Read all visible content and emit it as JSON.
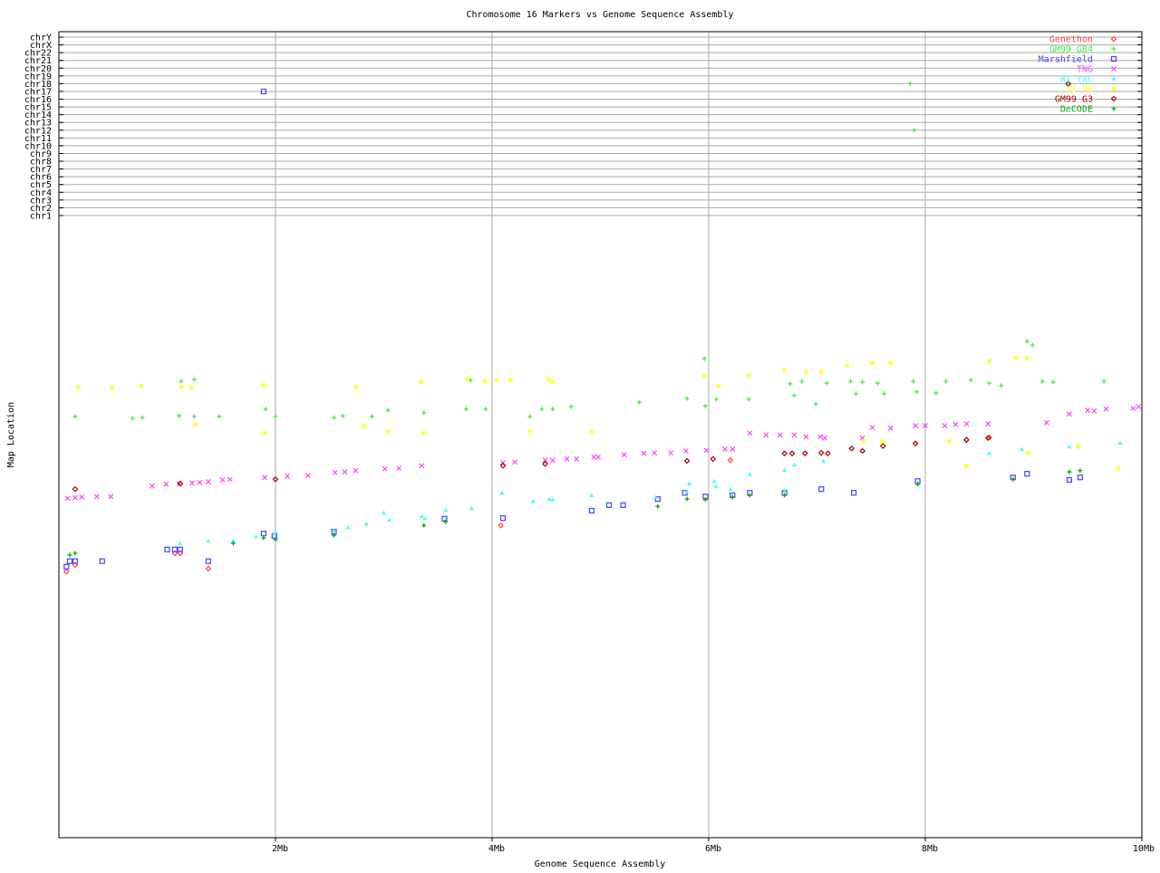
{
  "chart_data": {
    "type": "scatter",
    "title": "Chromosome 16 Markers vs Genome Sequence Assembly",
    "xlabel": "Genome Sequence Assembly",
    "ylabel": "Map Location",
    "xlim": [
      0,
      10
    ],
    "x_unit": "Mb",
    "x_ticks": [
      {
        "value": 2,
        "label": "2Mb"
      },
      {
        "value": 4,
        "label": "4Mb"
      },
      {
        "value": 6,
        "label": "6Mb"
      },
      {
        "value": 8,
        "label": "8Mb"
      },
      {
        "value": 10,
        "label": "10Mb"
      }
    ],
    "ylim": [
      0,
      100
    ],
    "chromosome_rows": [
      "chrY",
      "chrX",
      "chr22",
      "chr21",
      "chr20",
      "chr19",
      "chr18",
      "chr17",
      "chr16",
      "chr15",
      "chr14",
      "chr13",
      "chr12",
      "chr11",
      "chr10",
      "chr9",
      "chr8",
      "chr7",
      "chr6",
      "chr5",
      "chr4",
      "chr3",
      "chr2",
      "chr1"
    ],
    "grid": true,
    "legend_position": "top-right",
    "series": [
      {
        "name": "Genethon",
        "color": "#ff4444",
        "marker": "diamond",
        "points": [
          [
            0.07,
            43.2
          ],
          [
            0.15,
            44.3
          ],
          [
            1.07,
            46.2
          ],
          [
            1.12,
            46.2
          ],
          [
            1.38,
            43.7
          ],
          [
            4.08,
            50.7
          ],
          [
            6.2,
            61.3
          ],
          [
            8.38,
            64.6
          ],
          [
            8.59,
            65.0
          ]
        ],
        "other_chr": []
      },
      {
        "name": "GM99 GB4",
        "color": "#44ee44",
        "marker": "plus",
        "points": [
          [
            0.15,
            68.4
          ],
          [
            1.13,
            74.1
          ],
          [
            1.25,
            74.4
          ],
          [
            0.68,
            68.1
          ],
          [
            0.77,
            68.2
          ],
          [
            1.11,
            68.5
          ],
          [
            1.25,
            68.4
          ],
          [
            1.48,
            68.4
          ],
          [
            2.0,
            68.4
          ],
          [
            2.54,
            68.2
          ],
          [
            2.62,
            68.5
          ],
          [
            2.89,
            68.4
          ],
          [
            3.04,
            69.4
          ],
          [
            3.37,
            69.0
          ],
          [
            3.76,
            69.6
          ],
          [
            3.94,
            69.6
          ],
          [
            4.35,
            68.4
          ],
          [
            4.46,
            69.6
          ],
          [
            4.56,
            69.6
          ],
          [
            4.73,
            70.0
          ],
          [
            5.36,
            70.7
          ],
          [
            5.8,
            71.3
          ],
          [
            5.97,
            70.1
          ],
          [
            6.07,
            71.2
          ],
          [
            6.37,
            71.2
          ],
          [
            6.75,
            73.7
          ],
          [
            6.86,
            74.1
          ],
          [
            7.09,
            73.8
          ],
          [
            7.31,
            74.1
          ],
          [
            7.42,
            74.0
          ],
          [
            7.56,
            73.8
          ],
          [
            7.89,
            74.1
          ],
          [
            8.1,
            72.2
          ],
          [
            8.19,
            74.1
          ],
          [
            8.42,
            74.3
          ],
          [
            8.59,
            73.8
          ],
          [
            8.7,
            73.4
          ],
          [
            8.94,
            80.6
          ],
          [
            9.08,
            74.1
          ],
          [
            9.18,
            74.0
          ],
          [
            9.65,
            74.1
          ],
          [
            6.79,
            71.8
          ],
          [
            6.99,
            70.4
          ],
          [
            7.36,
            72.1
          ],
          [
            7.62,
            72.1
          ],
          [
            7.92,
            72.4
          ],
          [
            5.96,
            77.8
          ],
          [
            8.99,
            80.0
          ],
          [
            3.8,
            74.3
          ],
          [
            1.91,
            69.6
          ]
        ],
        "other_chr": [
          {
            "x": 7.86,
            "chr": "chr18"
          },
          {
            "x": 7.9,
            "chr": "chr12"
          }
        ]
      },
      {
        "name": "Marshfield",
        "color": "#4444ff",
        "marker": "square",
        "points": [
          [
            0.07,
            44.0
          ],
          [
            0.1,
            44.9
          ],
          [
            0.15,
            44.9
          ],
          [
            0.4,
            44.9
          ],
          [
            1.0,
            46.8
          ],
          [
            1.07,
            46.8
          ],
          [
            1.12,
            46.8
          ],
          [
            1.38,
            44.9
          ],
          [
            1.89,
            49.4
          ],
          [
            1.99,
            49.0
          ],
          [
            2.54,
            49.7
          ],
          [
            3.56,
            51.8
          ],
          [
            4.1,
            51.9
          ],
          [
            4.92,
            53.1
          ],
          [
            5.08,
            54.0
          ],
          [
            5.21,
            54.0
          ],
          [
            5.53,
            55.0
          ],
          [
            5.78,
            56.0
          ],
          [
            5.97,
            55.4
          ],
          [
            6.22,
            55.6
          ],
          [
            6.38,
            56.0
          ],
          [
            6.7,
            56.0
          ],
          [
            7.04,
            56.6
          ],
          [
            7.34,
            56.0
          ],
          [
            7.93,
            57.9
          ],
          [
            8.81,
            58.5
          ],
          [
            8.94,
            59.1
          ],
          [
            9.33,
            58.1
          ],
          [
            9.43,
            58.5
          ]
        ],
        "other_chr": [
          {
            "x": 1.89,
            "chr": "chr17"
          }
        ]
      },
      {
        "name": "TNG",
        "color": "#ff44ff",
        "marker": "x",
        "points": [
          [
            0.08,
            55.1
          ],
          [
            0.15,
            55.2
          ],
          [
            0.21,
            55.3
          ],
          [
            0.35,
            55.4
          ],
          [
            0.48,
            55.4
          ],
          [
            0.86,
            57.1
          ],
          [
            0.99,
            57.4
          ],
          [
            1.11,
            57.5
          ],
          [
            1.23,
            57.6
          ],
          [
            1.3,
            57.7
          ],
          [
            1.38,
            57.8
          ],
          [
            1.51,
            58.1
          ],
          [
            1.58,
            58.2
          ],
          [
            1.9,
            58.5
          ],
          [
            2.11,
            58.7
          ],
          [
            2.3,
            58.8
          ],
          [
            2.55,
            59.3
          ],
          [
            2.64,
            59.4
          ],
          [
            2.74,
            59.6
          ],
          [
            3.01,
            59.9
          ],
          [
            3.14,
            60.0
          ],
          [
            3.35,
            60.4
          ],
          [
            4.1,
            60.9
          ],
          [
            4.21,
            61.0
          ],
          [
            4.49,
            61.3
          ],
          [
            4.56,
            61.3
          ],
          [
            4.69,
            61.5
          ],
          [
            4.78,
            61.5
          ],
          [
            4.94,
            61.8
          ],
          [
            4.98,
            61.8
          ],
          [
            5.22,
            62.2
          ],
          [
            5.4,
            62.4
          ],
          [
            5.5,
            62.5
          ],
          [
            5.65,
            62.5
          ],
          [
            5.79,
            62.8
          ],
          [
            5.98,
            62.9
          ],
          [
            6.15,
            63.1
          ],
          [
            6.22,
            63.1
          ],
          [
            6.38,
            65.7
          ],
          [
            6.53,
            65.4
          ],
          [
            6.66,
            65.4
          ],
          [
            6.79,
            65.4
          ],
          [
            6.9,
            65.1
          ],
          [
            7.03,
            65.1
          ],
          [
            7.07,
            64.9
          ],
          [
            7.42,
            64.9
          ],
          [
            7.51,
            66.6
          ],
          [
            7.68,
            66.5
          ],
          [
            7.91,
            66.9
          ],
          [
            8.0,
            66.9
          ],
          [
            8.18,
            66.9
          ],
          [
            8.28,
            67.1
          ],
          [
            8.38,
            67.2
          ],
          [
            8.58,
            67.2
          ],
          [
            9.12,
            67.4
          ],
          [
            9.33,
            68.8
          ],
          [
            9.5,
            69.4
          ],
          [
            9.56,
            69.3
          ],
          [
            9.67,
            69.6
          ],
          [
            9.92,
            69.7
          ],
          [
            9.97,
            70.0
          ]
        ],
        "other_chr": []
      },
      {
        "name": "WI YAC",
        "color": "#44ffff",
        "marker": "triangle",
        "points": [
          [
            1.12,
            47.8
          ],
          [
            1.38,
            48.2
          ],
          [
            1.61,
            48.2
          ],
          [
            1.82,
            48.9
          ],
          [
            1.99,
            49.4
          ],
          [
            2.54,
            49.9
          ],
          [
            2.67,
            50.4
          ],
          [
            2.84,
            51.0
          ],
          [
            3.0,
            52.8
          ],
          [
            3.05,
            51.6
          ],
          [
            3.35,
            52.2
          ],
          [
            3.38,
            51.9
          ],
          [
            3.57,
            53.2
          ],
          [
            3.81,
            53.5
          ],
          [
            4.09,
            56.0
          ],
          [
            4.38,
            54.6
          ],
          [
            4.53,
            55.0
          ],
          [
            4.56,
            54.9
          ],
          [
            4.92,
            55.6
          ],
          [
            5.51,
            55.3
          ],
          [
            5.8,
            56.2
          ],
          [
            5.82,
            57.5
          ],
          [
            6.05,
            57.9
          ],
          [
            6.07,
            57.1
          ],
          [
            6.2,
            56.6
          ],
          [
            6.38,
            59.0
          ],
          [
            6.7,
            59.7
          ],
          [
            6.79,
            60.6
          ],
          [
            7.06,
            61.2
          ],
          [
            6.7,
            56.3
          ],
          [
            7.93,
            57.6
          ],
          [
            8.59,
            62.4
          ],
          [
            8.89,
            63.1
          ],
          [
            9.33,
            63.5
          ],
          [
            9.8,
            64.1
          ]
        ],
        "other_chr": []
      },
      {
        "name": "WI RH",
        "color": "#ffff44",
        "marker": "asterisk",
        "points": [
          [
            0.18,
            73.1
          ],
          [
            0.49,
            73.1
          ],
          [
            0.76,
            73.4
          ],
          [
            1.13,
            73.2
          ],
          [
            1.22,
            73.1
          ],
          [
            1.26,
            67.1
          ],
          [
            1.89,
            73.5
          ],
          [
            1.9,
            65.7
          ],
          [
            2.74,
            73.1
          ],
          [
            2.82,
            66.8
          ],
          [
            3.04,
            66.0
          ],
          [
            3.34,
            74.0
          ],
          [
            3.37,
            65.7
          ],
          [
            3.77,
            74.4
          ],
          [
            3.93,
            74.1
          ],
          [
            4.04,
            74.3
          ],
          [
            4.17,
            74.3
          ],
          [
            4.35,
            66.0
          ],
          [
            4.52,
            74.4
          ],
          [
            4.56,
            74.0
          ],
          [
            4.92,
            65.9
          ],
          [
            5.96,
            74.9
          ],
          [
            6.09,
            73.4
          ],
          [
            6.37,
            75.1
          ],
          [
            6.7,
            76.0
          ],
          [
            6.9,
            75.6
          ],
          [
            7.04,
            75.6
          ],
          [
            7.28,
            76.6
          ],
          [
            7.51,
            77.1
          ],
          [
            7.68,
            77.1
          ],
          [
            7.43,
            64.4
          ],
          [
            7.6,
            64.3
          ],
          [
            8.22,
            64.4
          ],
          [
            8.38,
            60.4
          ],
          [
            8.59,
            77.4
          ],
          [
            8.83,
            77.9
          ],
          [
            8.94,
            77.9
          ],
          [
            8.95,
            62.5
          ],
          [
            9.41,
            63.5
          ],
          [
            9.78,
            60.0
          ]
        ],
        "other_chr": []
      },
      {
        "name": "GM99 G3",
        "color": "#aa0000",
        "marker": "diamond",
        "points": [
          [
            0.15,
            56.6
          ],
          [
            1.12,
            57.5
          ],
          [
            2.0,
            58.2
          ],
          [
            4.1,
            60.4
          ],
          [
            4.49,
            60.7
          ],
          [
            5.8,
            61.2
          ],
          [
            6.04,
            61.5
          ],
          [
            6.7,
            62.4
          ],
          [
            6.77,
            62.4
          ],
          [
            6.89,
            62.4
          ],
          [
            7.04,
            62.5
          ],
          [
            7.1,
            62.4
          ],
          [
            7.32,
            63.2
          ],
          [
            7.42,
            62.8
          ],
          [
            7.61,
            63.6
          ],
          [
            7.91,
            64.0
          ],
          [
            8.38,
            64.6
          ],
          [
            8.58,
            64.9
          ]
        ],
        "other_chr": [
          {
            "x": 9.32,
            "chr": "chr18"
          }
        ]
      },
      {
        "name": "DeCODE",
        "color": "#00aa00",
        "marker": "plus",
        "points": [
          [
            0.1,
            45.9
          ],
          [
            0.15,
            46.2
          ],
          [
            1.61,
            47.8
          ],
          [
            1.89,
            48.7
          ],
          [
            2.0,
            48.4
          ],
          [
            2.54,
            49.1
          ],
          [
            3.37,
            50.7
          ],
          [
            3.57,
            51.3
          ],
          [
            5.53,
            53.8
          ],
          [
            5.8,
            55.0
          ],
          [
            5.97,
            54.9
          ],
          [
            6.22,
            55.3
          ],
          [
            6.38,
            55.6
          ],
          [
            6.7,
            55.6
          ],
          [
            7.93,
            57.4
          ],
          [
            8.81,
            58.2
          ],
          [
            9.33,
            59.4
          ],
          [
            9.43,
            59.6
          ]
        ],
        "other_chr": []
      }
    ]
  }
}
